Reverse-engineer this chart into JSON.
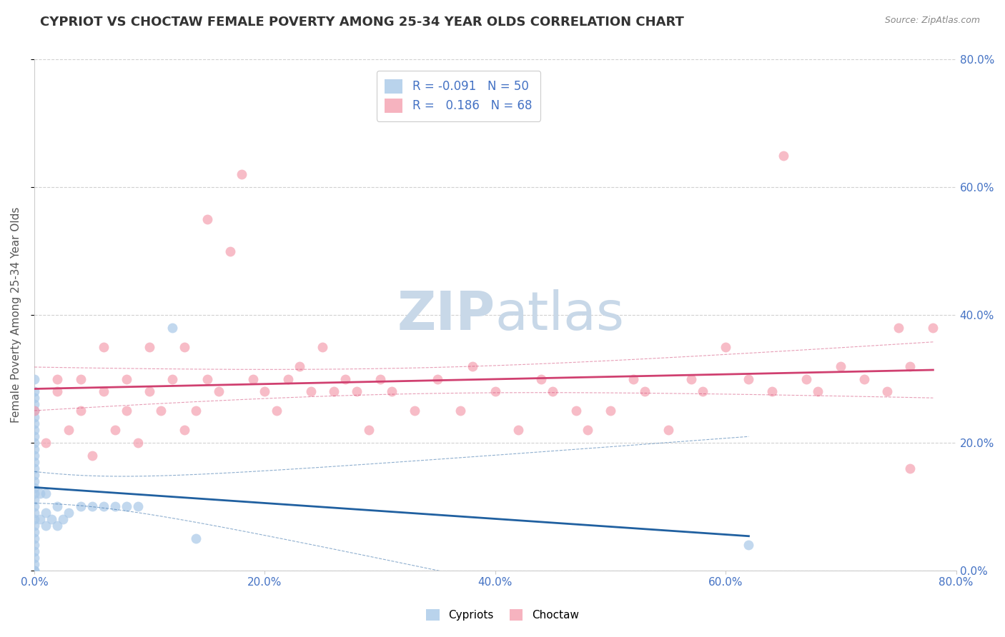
{
  "title": "CYPRIOT VS CHOCTAW FEMALE POVERTY AMONG 25-34 YEAR OLDS CORRELATION CHART",
  "source": "Source: ZipAtlas.com",
  "ylabel": "Female Poverty Among 25-34 Year Olds",
  "xlim": [
    0.0,
    0.8
  ],
  "ylim": [
    0.0,
    0.8
  ],
  "xtick_vals": [
    0.0,
    0.2,
    0.4,
    0.6,
    0.8
  ],
  "ytick_vals": [
    0.0,
    0.2,
    0.4,
    0.6,
    0.8
  ],
  "cypriot_R": -0.091,
  "cypriot_N": 50,
  "choctaw_R": 0.186,
  "choctaw_N": 68,
  "cypriot_color": "#a8c8e8",
  "choctaw_color": "#f4a0b0",
  "cypriot_line_color": "#2060a0",
  "choctaw_line_color": "#d04070",
  "background_color": "#ffffff",
  "grid_color": "#cccccc",
  "watermark_color": "#c8d8e8",
  "tick_color": "#4472c4",
  "title_fontsize": 13,
  "label_fontsize": 11,
  "tick_fontsize": 11,
  "legend_R_color": "#4472c4",
  "cypriot_x": [
    0.0,
    0.0,
    0.0,
    0.0,
    0.0,
    0.0,
    0.0,
    0.0,
    0.0,
    0.0,
    0.0,
    0.0,
    0.0,
    0.0,
    0.0,
    0.0,
    0.0,
    0.0,
    0.0,
    0.0,
    0.0,
    0.0,
    0.0,
    0.0,
    0.0,
    0.0,
    0.0,
    0.0,
    0.0,
    0.0,
    0.0,
    0.005,
    0.005,
    0.01,
    0.01,
    0.01,
    0.015,
    0.02,
    0.02,
    0.025,
    0.03,
    0.04,
    0.05,
    0.06,
    0.07,
    0.08,
    0.09,
    0.12,
    0.14,
    0.62
  ],
  "cypriot_y": [
    0.0,
    0.0,
    0.01,
    0.02,
    0.03,
    0.04,
    0.05,
    0.06,
    0.07,
    0.08,
    0.09,
    0.1,
    0.11,
    0.12,
    0.13,
    0.14,
    0.15,
    0.16,
    0.17,
    0.18,
    0.19,
    0.2,
    0.21,
    0.22,
    0.23,
    0.24,
    0.25,
    0.26,
    0.27,
    0.28,
    0.3,
    0.08,
    0.12,
    0.07,
    0.09,
    0.12,
    0.08,
    0.07,
    0.1,
    0.08,
    0.09,
    0.1,
    0.1,
    0.1,
    0.1,
    0.1,
    0.1,
    0.38,
    0.05,
    0.04
  ],
  "choctaw_x": [
    0.0,
    0.01,
    0.02,
    0.02,
    0.03,
    0.04,
    0.04,
    0.05,
    0.06,
    0.06,
    0.07,
    0.08,
    0.08,
    0.09,
    0.1,
    0.1,
    0.11,
    0.12,
    0.13,
    0.13,
    0.14,
    0.15,
    0.15,
    0.16,
    0.17,
    0.18,
    0.19,
    0.2,
    0.21,
    0.22,
    0.23,
    0.24,
    0.25,
    0.26,
    0.27,
    0.28,
    0.29,
    0.3,
    0.31,
    0.33,
    0.35,
    0.37,
    0.38,
    0.4,
    0.42,
    0.44,
    0.45,
    0.47,
    0.48,
    0.5,
    0.52,
    0.53,
    0.55,
    0.57,
    0.58,
    0.6,
    0.62,
    0.64,
    0.65,
    0.67,
    0.68,
    0.7,
    0.72,
    0.74,
    0.75,
    0.76,
    0.78,
    0.76
  ],
  "choctaw_y": [
    0.25,
    0.2,
    0.28,
    0.3,
    0.22,
    0.3,
    0.25,
    0.18,
    0.28,
    0.35,
    0.22,
    0.25,
    0.3,
    0.2,
    0.28,
    0.35,
    0.25,
    0.3,
    0.22,
    0.35,
    0.25,
    0.55,
    0.3,
    0.28,
    0.5,
    0.62,
    0.3,
    0.28,
    0.25,
    0.3,
    0.32,
    0.28,
    0.35,
    0.28,
    0.3,
    0.28,
    0.22,
    0.3,
    0.28,
    0.25,
    0.3,
    0.25,
    0.32,
    0.28,
    0.22,
    0.3,
    0.28,
    0.25,
    0.22,
    0.25,
    0.3,
    0.28,
    0.22,
    0.3,
    0.28,
    0.35,
    0.3,
    0.28,
    0.65,
    0.3,
    0.28,
    0.32,
    0.3,
    0.28,
    0.38,
    0.32,
    0.38,
    0.16
  ]
}
